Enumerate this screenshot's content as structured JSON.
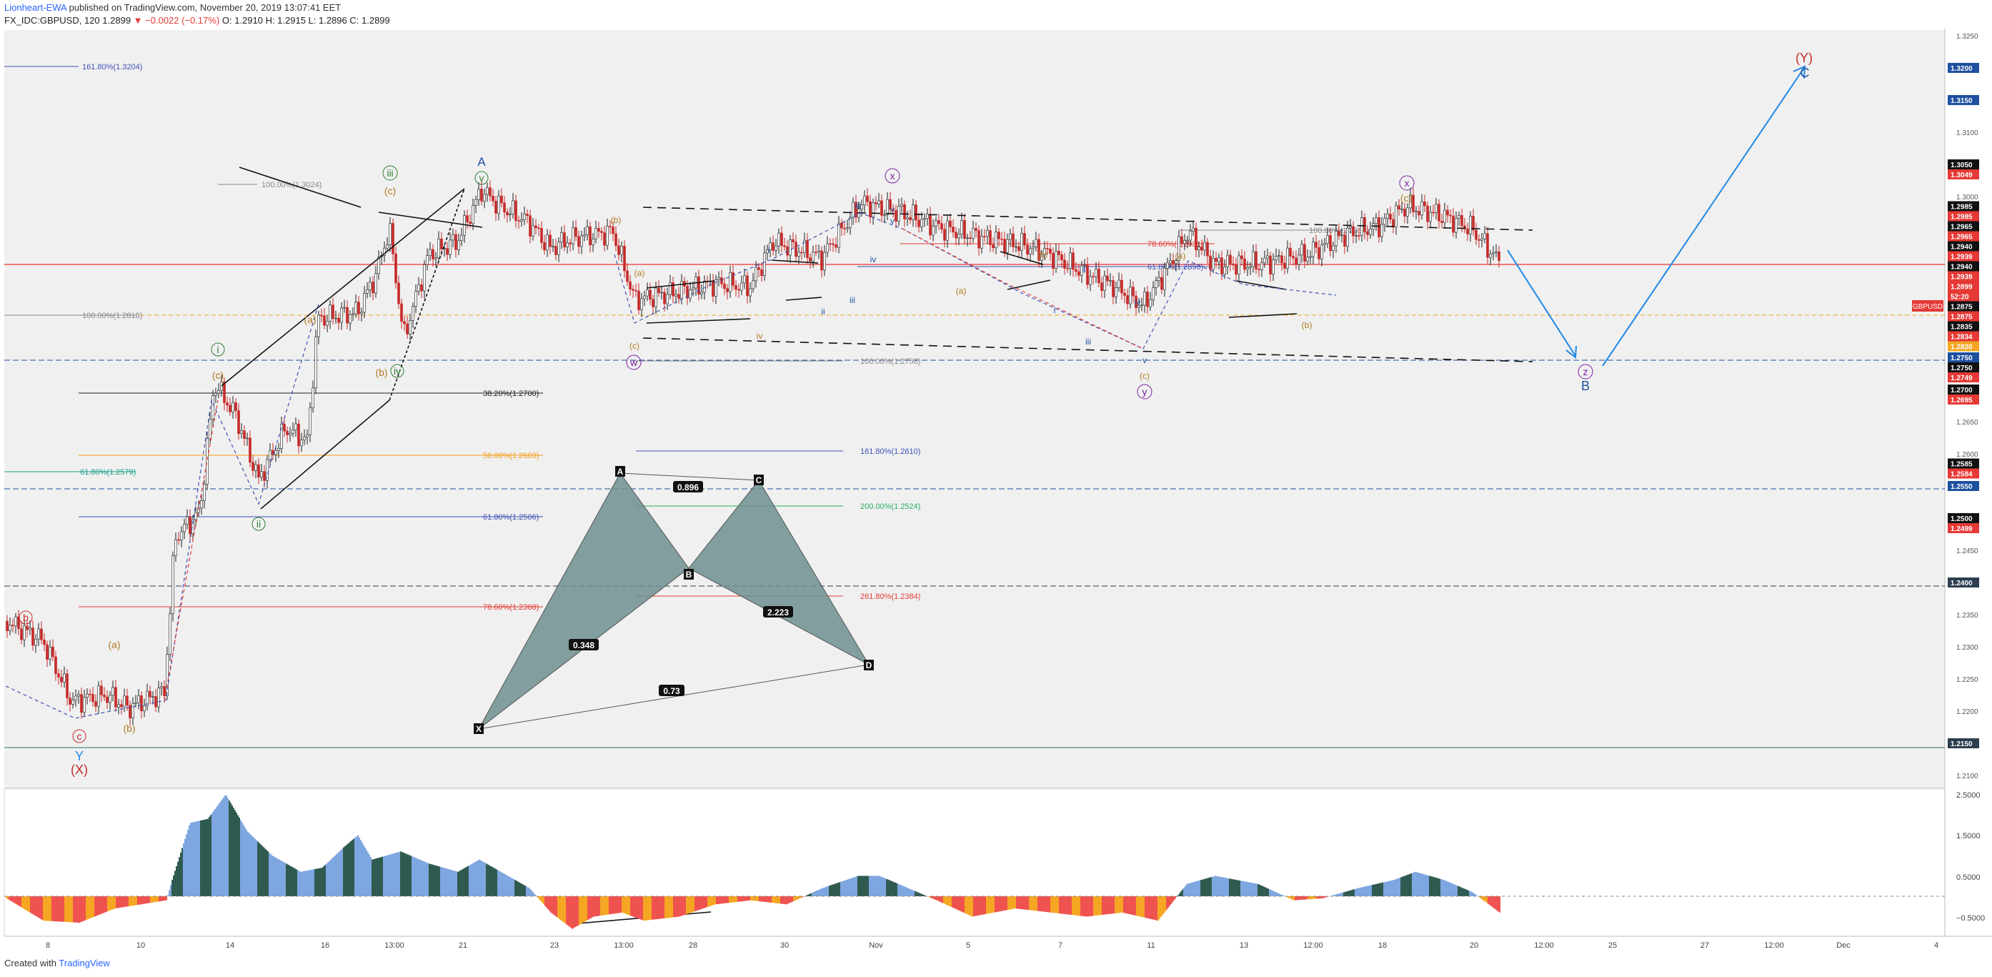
{
  "header": {
    "author": "Lionheart-EWA",
    "published": "published on TradingView.com, November 20, 2019 13:07:41 EET",
    "symbol": "FX_IDC:GBPUSD, 120",
    "last": "1.2899",
    "change": "▼ −0.0022 (−0.17%)",
    "ohlc": "O: 1.2910 H: 1.2915 L: 1.2896 C: 1.2899"
  },
  "footer": {
    "created": "Created with",
    "brand": "TradingView"
  },
  "colors": {
    "bull": "#26a69a",
    "bear": "#ef5350",
    "price_bg": "#f0f0f0",
    "wave_green": "#2e7d32",
    "wave_brown": "#b07a20",
    "wave_purple": "#7b1fa2",
    "wave_blue": "#1e50a0",
    "wave_red": "#c62828",
    "projection": "#1e88e5"
  },
  "chart_data": {
    "type": "line",
    "symbol": "GBPUSD",
    "y_axis_ticks": [
      "1.3250",
      "1.3100",
      "1.3000",
      "1.2900",
      "1.2800",
      "1.2700",
      "1.2650",
      "1.2600",
      "1.2450",
      "1.2350",
      "1.2300",
      "1.2250",
      "1.2200",
      "1.2100"
    ],
    "x_axis_ticks": [
      "8",
      "10",
      "14",
      "16",
      "13:00",
      "21",
      "23",
      "13:00",
      "28",
      "30",
      "Nov",
      "5",
      "7",
      "11",
      "13",
      "12:00",
      "18",
      "20",
      "12:00",
      "25",
      "27",
      "12:00",
      "Dec",
      "4"
    ],
    "price_labels": [
      {
        "text": "1.3200",
        "kind": "blue"
      },
      {
        "text": "1.3150",
        "kind": "blue"
      },
      {
        "text": "1.3050",
        "kind": "black"
      },
      {
        "text": "1.3049",
        "kind": "red"
      },
      {
        "text": "1.2985",
        "kind": "black"
      },
      {
        "text": "1.2985",
        "kind": "red"
      },
      {
        "text": "1.2965",
        "kind": "black"
      },
      {
        "text": "1.2965",
        "kind": "red"
      },
      {
        "text": "1.2940",
        "kind": "black"
      },
      {
        "text": "1.2939",
        "kind": "red"
      },
      {
        "text": "1.2940",
        "kind": "black"
      },
      {
        "text": "1.2939",
        "kind": "red"
      },
      {
        "text": "1.2899",
        "kind": "red"
      },
      {
        "text": "52:20",
        "kind": "red"
      },
      {
        "text": "1.2875",
        "kind": "black"
      },
      {
        "text": "1.2875",
        "kind": "red"
      },
      {
        "text": "1.2835",
        "kind": "black"
      },
      {
        "text": "1.2834",
        "kind": "red"
      },
      {
        "text": "1.2820",
        "kind": "orange"
      },
      {
        "text": "1.2750",
        "kind": "blue"
      },
      {
        "text": "1.2750",
        "kind": "black"
      },
      {
        "text": "1.2749",
        "kind": "red"
      },
      {
        "text": "1.2700",
        "kind": "black"
      },
      {
        "text": "1.2695",
        "kind": "red"
      },
      {
        "text": "1.2585",
        "kind": "black"
      },
      {
        "text": "1.2584",
        "kind": "red"
      },
      {
        "text": "1.2550",
        "kind": "blue"
      },
      {
        "text": "1.2500",
        "kind": "black"
      },
      {
        "text": "1.2499",
        "kind": "red"
      },
      {
        "text": "1.2400",
        "kind": "navy"
      },
      {
        "text": "1.2150",
        "kind": "navy"
      }
    ],
    "symbol_tag": "GBPUSD",
    "osc_ticks": [
      "2.5000",
      "1.5000",
      "0.5000",
      "−0.5000"
    ],
    "fib_labels": [
      "161.80%(1.3204)",
      "100.00%(1.3024)",
      "100.00%(1.2818)",
      "38.20%(1.2700)",
      "50.00%(1.2603)",
      "61.80%(1.2579)",
      "61.80%(1.2506)",
      "78.60%(1.2368)",
      "100.00%(1.2758)",
      "161.80%(1.2610)",
      "200.00%(1.2524)",
      "261.80%(1.2384)",
      "78.60%(1.2931)",
      "61.80%(1.2896)",
      "100.00%(1.2954)"
    ],
    "harmonic": {
      "points": [
        "X",
        "A",
        "B",
        "C",
        "D"
      ],
      "ratios": [
        "0.896",
        "0.348",
        "2.223",
        "0.73"
      ]
    },
    "wave_labels": [
      "Y",
      "(X)",
      "c",
      "b",
      "(a)",
      "(b)",
      "(c)",
      "i",
      "ii",
      "iii",
      "iv",
      "v",
      "A",
      "(a)",
      "(b)",
      "(c)",
      "w",
      "x",
      "y",
      "x",
      "(c)",
      "(Y)",
      "C",
      "z",
      "B"
    ],
    "minor_labels": [
      "i",
      "ii",
      "iii",
      "iv",
      "v",
      "(a)",
      "(b)",
      "(c)",
      "i",
      "ii",
      "iii",
      "iv",
      "v",
      "(a)",
      "(b)",
      "(c)",
      "iv",
      "iii",
      "v",
      "(a)",
      "(b)"
    ]
  }
}
